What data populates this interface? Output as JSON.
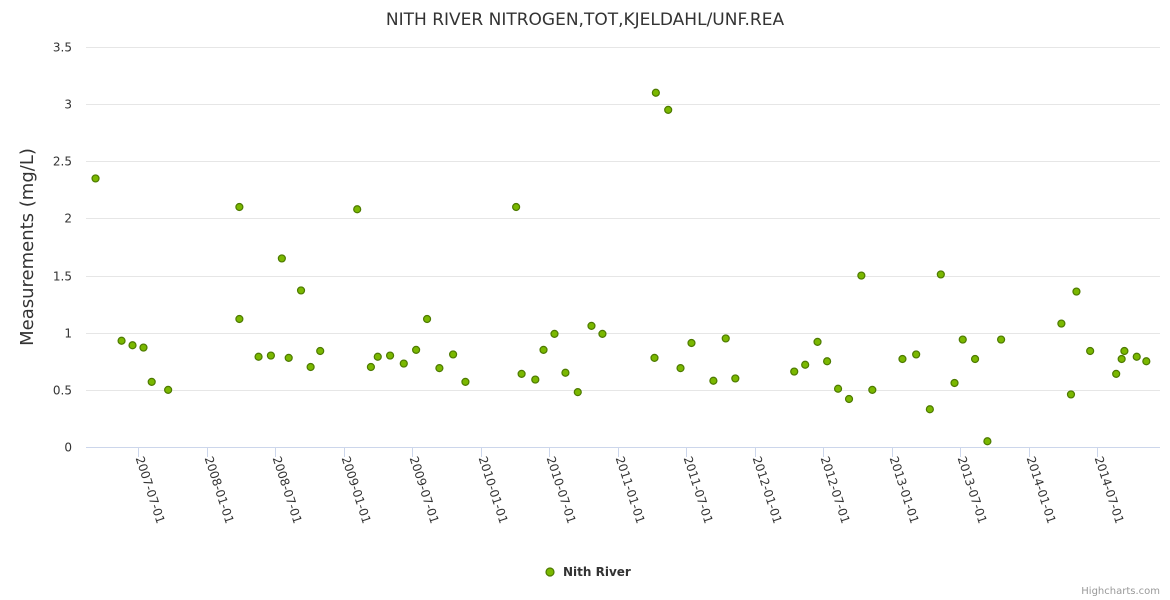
{
  "chart_data": {
    "type": "scatter",
    "title": "NITH RIVER NITROGEN,TOT,KJELDAHL/UNF.REA",
    "xlabel": "",
    "ylabel": "Measurements (mg/L)",
    "ylim": [
      0,
      3.5
    ],
    "yticks": [
      "0",
      "0.5",
      "1",
      "1.5",
      "2",
      "2.5",
      "3",
      "3.5"
    ],
    "xlim_decimal_year": [
      2007.13,
      2014.98
    ],
    "xticks": [
      {
        "label": "2007-07-01",
        "x": 2007.5
      },
      {
        "label": "2008-01-01",
        "x": 2008.0
      },
      {
        "label": "2008-07-01",
        "x": 2008.5
      },
      {
        "label": "2009-01-01",
        "x": 2009.0
      },
      {
        "label": "2009-07-01",
        "x": 2009.5
      },
      {
        "label": "2010-01-01",
        "x": 2010.0
      },
      {
        "label": "2010-07-01",
        "x": 2010.5
      },
      {
        "label": "2011-01-01",
        "x": 2011.0
      },
      {
        "label": "2011-07-01",
        "x": 2011.5
      },
      {
        "label": "2012-01-01",
        "x": 2012.0
      },
      {
        "label": "2012-07-01",
        "x": 2012.5
      },
      {
        "label": "2013-01-01",
        "x": 2013.0
      },
      {
        "label": "2013-07-01",
        "x": 2013.5
      },
      {
        "label": "2014-01-01",
        "x": 2014.0
      },
      {
        "label": "2014-07-01",
        "x": 2014.5
      }
    ],
    "grid": true,
    "legend_position": "bottom-center",
    "series": [
      {
        "name": "Nith River",
        "color": "#7ab800",
        "border_color": "#4d7a00",
        "points": [
          [
            2007.19,
            2.35
          ],
          [
            2007.38,
            0.93
          ],
          [
            2007.46,
            0.89
          ],
          [
            2007.54,
            0.87
          ],
          [
            2007.6,
            0.57
          ],
          [
            2007.72,
            0.5
          ],
          [
            2008.24,
            2.1
          ],
          [
            2008.24,
            1.12
          ],
          [
            2008.38,
            0.79
          ],
          [
            2008.47,
            0.8
          ],
          [
            2008.55,
            1.65
          ],
          [
            2008.6,
            0.78
          ],
          [
            2008.69,
            1.37
          ],
          [
            2008.76,
            0.7
          ],
          [
            2008.83,
            0.84
          ],
          [
            2009.1,
            2.08
          ],
          [
            2009.2,
            0.7
          ],
          [
            2009.25,
            0.79
          ],
          [
            2009.34,
            0.8
          ],
          [
            2009.44,
            0.73
          ],
          [
            2009.53,
            0.85
          ],
          [
            2009.61,
            1.12
          ],
          [
            2009.7,
            0.69
          ],
          [
            2009.8,
            0.81
          ],
          [
            2009.89,
            0.57
          ],
          [
            2010.26,
            2.1
          ],
          [
            2010.3,
            0.64
          ],
          [
            2010.4,
            0.59
          ],
          [
            2010.46,
            0.85
          ],
          [
            2010.54,
            0.99
          ],
          [
            2010.62,
            0.65
          ],
          [
            2010.71,
            0.48
          ],
          [
            2010.81,
            1.06
          ],
          [
            2010.89,
            0.99
          ],
          [
            2011.28,
            3.1
          ],
          [
            2011.27,
            0.78
          ],
          [
            2011.37,
            2.95
          ],
          [
            2011.46,
            0.69
          ],
          [
            2011.54,
            0.91
          ],
          [
            2011.7,
            0.58
          ],
          [
            2011.79,
            0.95
          ],
          [
            2011.86,
            0.6
          ],
          [
            2012.29,
            0.66
          ],
          [
            2012.37,
            0.72
          ],
          [
            2012.46,
            0.92
          ],
          [
            2012.53,
            0.75
          ],
          [
            2012.61,
            0.51
          ],
          [
            2012.69,
            0.42
          ],
          [
            2012.78,
            1.5
          ],
          [
            2012.86,
            0.5
          ],
          [
            2013.08,
            0.77
          ],
          [
            2013.18,
            0.81
          ],
          [
            2013.28,
            0.33
          ],
          [
            2013.36,
            1.51
          ],
          [
            2013.46,
            0.56
          ],
          [
            2013.52,
            0.94
          ],
          [
            2013.61,
            0.77
          ],
          [
            2013.7,
            0.05
          ],
          [
            2013.8,
            0.94
          ],
          [
            2014.24,
            1.08
          ],
          [
            2014.31,
            0.46
          ],
          [
            2014.35,
            1.36
          ],
          [
            2014.45,
            0.84
          ],
          [
            2014.64,
            0.64
          ],
          [
            2014.68,
            0.77
          ],
          [
            2014.7,
            0.84
          ],
          [
            2014.79,
            0.79
          ],
          [
            2014.86,
            0.75
          ]
        ]
      }
    ]
  },
  "credits": "Highcharts.com"
}
